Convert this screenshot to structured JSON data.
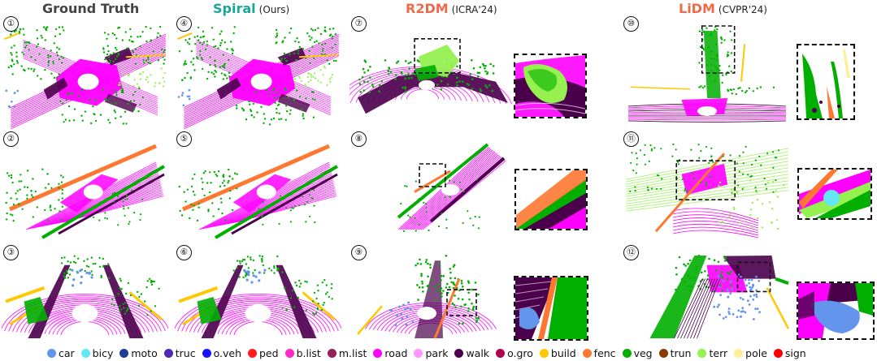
{
  "columns": [
    {
      "title": "Ground Truth",
      "subtitle": "",
      "color": "#444444"
    },
    {
      "title": "Spiral",
      "subtitle": "(Ours)",
      "color": "#1aa79a"
    },
    {
      "title": "R2DM",
      "subtitle": "(ICRA'24)",
      "color": "#ee6a4a"
    },
    {
      "title": "LiDM",
      "subtitle": "(CVPR'24)",
      "color": "#ee6a4a"
    }
  ],
  "scenes": [
    {
      "number": "①",
      "type": "intersection"
    },
    {
      "number": "④",
      "type": "intersection"
    },
    {
      "number": "⑦",
      "type": "intersection-r2dm"
    },
    {
      "number": "⑩",
      "type": "intersection-lidm"
    },
    {
      "number": "②",
      "type": "diagonal"
    },
    {
      "number": "⑤",
      "type": "diagonal"
    },
    {
      "number": "⑧",
      "type": "diagonal-r2dm"
    },
    {
      "number": "⑪",
      "type": "diagonal-lidm"
    },
    {
      "number": "③",
      "type": "street"
    },
    {
      "number": "⑥",
      "type": "street"
    },
    {
      "number": "⑨",
      "type": "street-r2dm"
    },
    {
      "number": "⑫",
      "type": "street-lidm"
    }
  ],
  "legend": [
    {
      "label": "car",
      "color": "#6495ed"
    },
    {
      "label": "bicy",
      "color": "#64e6f5"
    },
    {
      "label": "moto",
      "color": "#1e3c96"
    },
    {
      "label": "truc",
      "color": "#5028b4"
    },
    {
      "label": "o.veh",
      "color": "#1414ff"
    },
    {
      "label": "ped",
      "color": "#ff1e1e"
    },
    {
      "label": "b.list",
      "color": "#ff28c8"
    },
    {
      "label": "m.list",
      "color": "#961e5a"
    },
    {
      "label": "road",
      "color": "#ff00ff"
    },
    {
      "label": "park",
      "color": "#ff96ff"
    },
    {
      "label": "walk",
      "color": "#4b004b"
    },
    {
      "label": "o.gro",
      "color": "#af0050"
    },
    {
      "label": "build",
      "color": "#ffc800"
    },
    {
      "label": "fenc",
      "color": "#ff7832"
    },
    {
      "label": "veg",
      "color": "#00af00"
    },
    {
      "label": "trun",
      "color": "#873c00"
    },
    {
      "label": "terr",
      "color": "#96f050"
    },
    {
      "label": "pole",
      "color": "#fff096"
    },
    {
      "label": "sign",
      "color": "#ff0000"
    }
  ]
}
